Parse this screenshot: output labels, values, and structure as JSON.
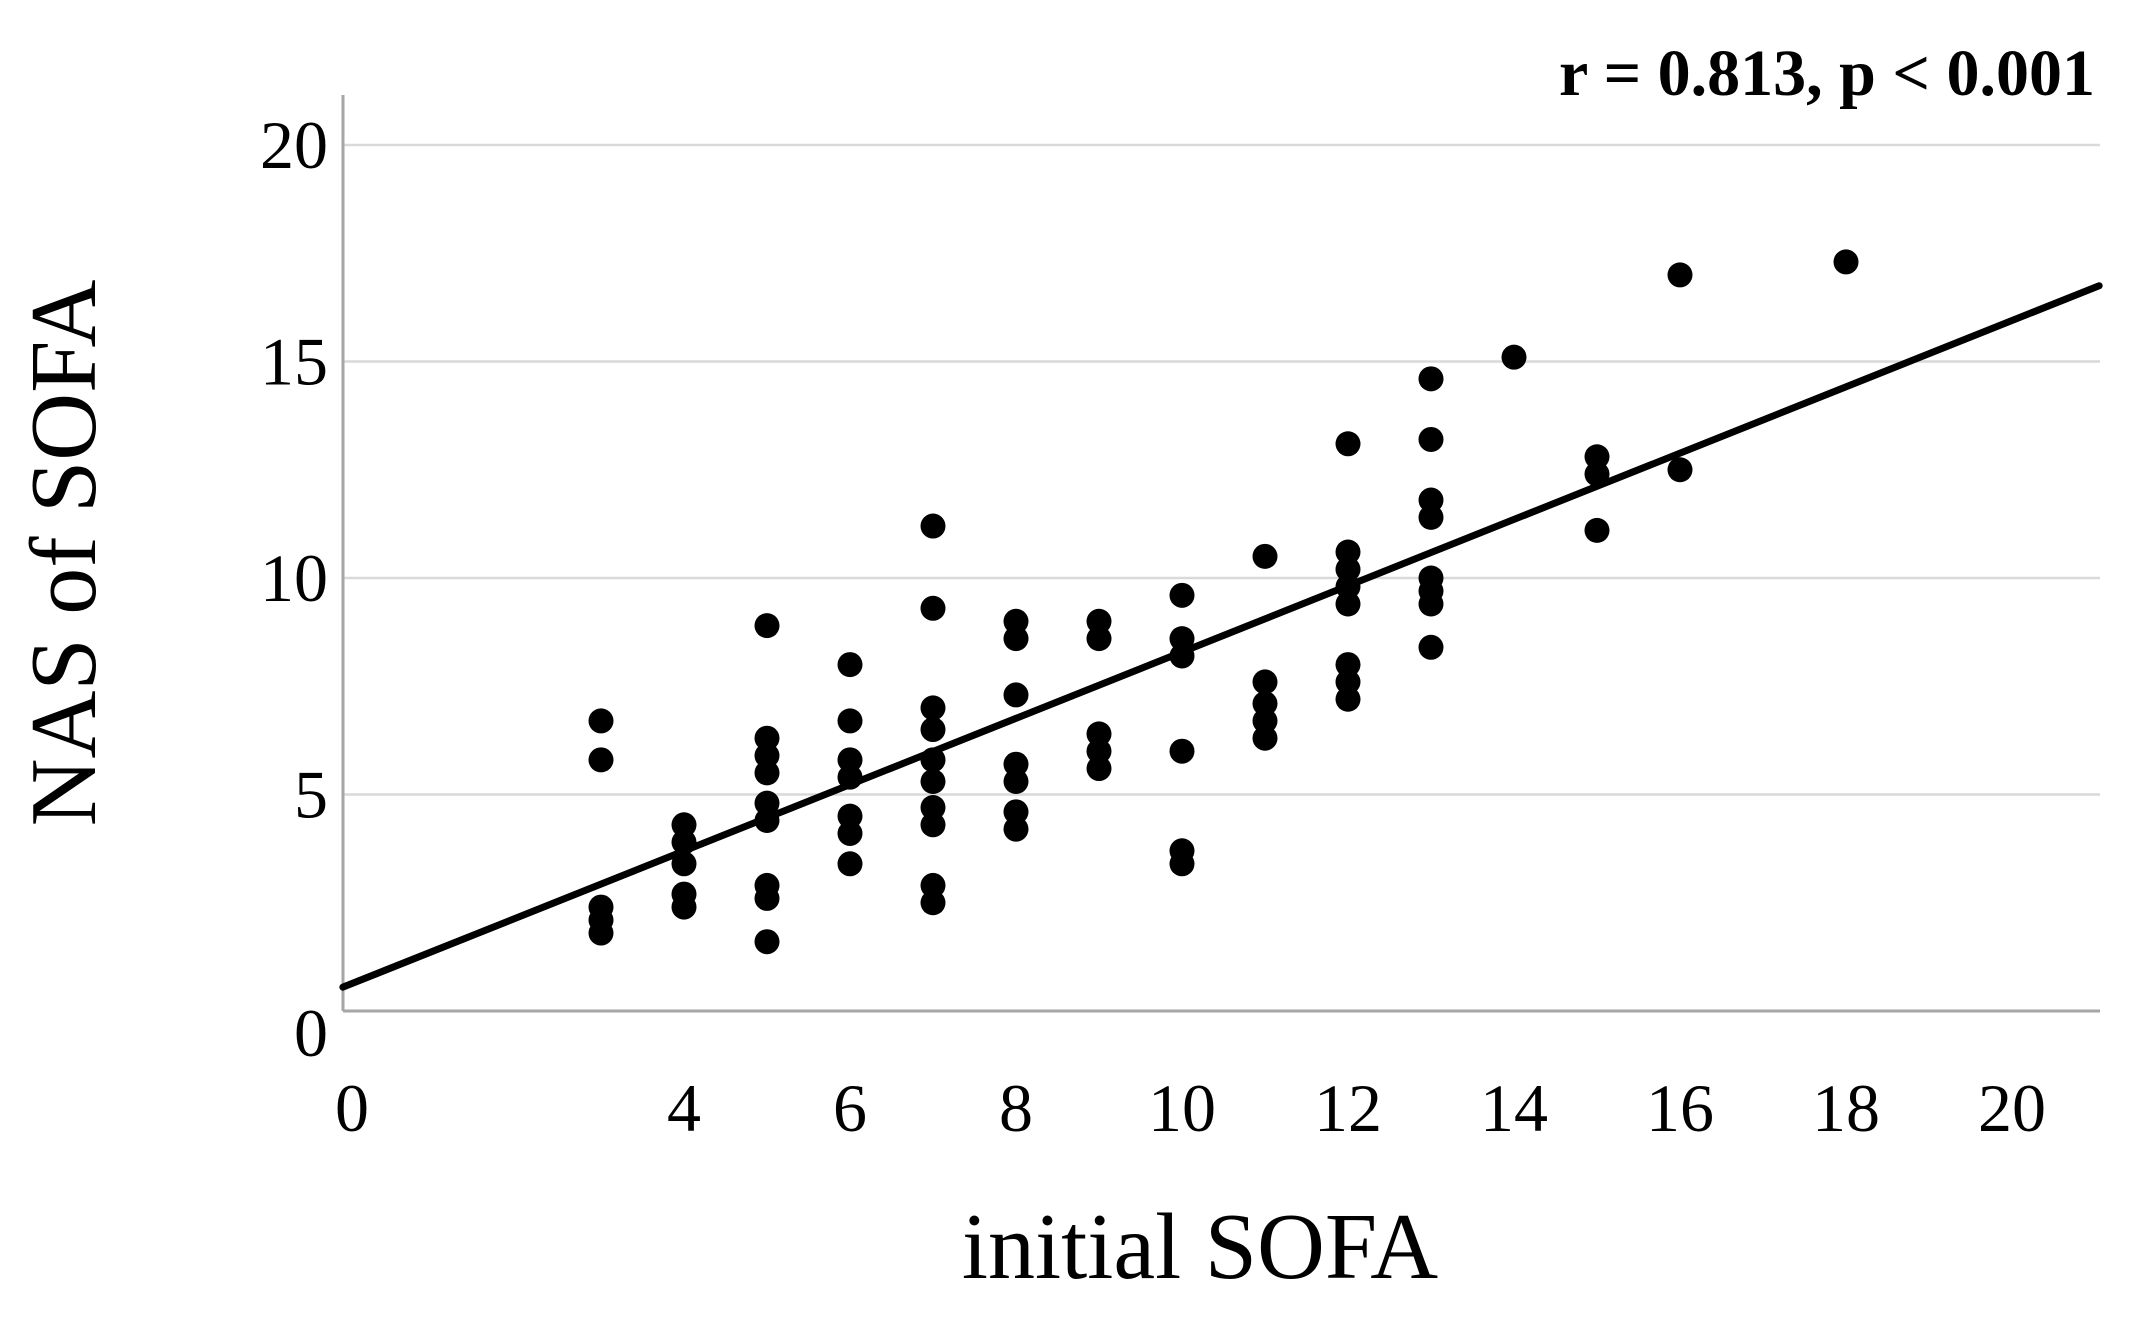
{
  "annotation": "r = 0.813, p < 0.001",
  "colors": {
    "dot": "#000000",
    "trend_line": "#000000",
    "gridline": "#d9d9d9",
    "axis_line": "#a6a6a6",
    "text": "#000000",
    "background": "#ffffff"
  },
  "chart_data": {
    "type": "scatter",
    "title": "",
    "xlabel": "initial SOFA",
    "ylabel": "NAS of SOFA",
    "annotation": "r = 0.813, p < 0.001",
    "xlim": [
      0,
      21
    ],
    "ylim": [
      0,
      21.2
    ],
    "grid": "horizontal-only",
    "legend": "none",
    "x_tick_values": [
      0,
      4,
      6,
      8,
      10,
      12,
      14,
      16,
      18,
      20
    ],
    "x_tick_labels": [
      "0",
      "4",
      "6",
      "8",
      "10",
      "12",
      "14",
      "16",
      "18",
      "20"
    ],
    "y_tick_values": [
      0,
      5,
      10,
      15,
      20
    ],
    "y_tick_labels": [
      "0",
      "5",
      "10",
      "15",
      "20"
    ],
    "points": [
      [
        3,
        6.7
      ],
      [
        3,
        5.8
      ],
      [
        3,
        2.4
      ],
      [
        3,
        2.1
      ],
      [
        3,
        1.8
      ],
      [
        4,
        4.3
      ],
      [
        4,
        3.9
      ],
      [
        4,
        3.4
      ],
      [
        4,
        2.7
      ],
      [
        4,
        2.4
      ],
      [
        5,
        8.9
      ],
      [
        5,
        6.3
      ],
      [
        5,
        5.9
      ],
      [
        5,
        5.5
      ],
      [
        5,
        4.8
      ],
      [
        5,
        4.4
      ],
      [
        5,
        2.9
      ],
      [
        5,
        2.6
      ],
      [
        5,
        1.6
      ],
      [
        6,
        8.0
      ],
      [
        6,
        6.7
      ],
      [
        6,
        5.8
      ],
      [
        6,
        5.4
      ],
      [
        6,
        4.5
      ],
      [
        6,
        4.1
      ],
      [
        6,
        3.4
      ],
      [
        7,
        11.2
      ],
      [
        7,
        9.3
      ],
      [
        7,
        7.0
      ],
      [
        7,
        6.5
      ],
      [
        7,
        5.8
      ],
      [
        7,
        5.3
      ],
      [
        7,
        4.7
      ],
      [
        7,
        4.3
      ],
      [
        7,
        2.9
      ],
      [
        7,
        2.5
      ],
      [
        8,
        9.0
      ],
      [
        8,
        8.6
      ],
      [
        8,
        7.3
      ],
      [
        8,
        5.7
      ],
      [
        8,
        5.3
      ],
      [
        8,
        4.6
      ],
      [
        8,
        4.2
      ],
      [
        9,
        9.0
      ],
      [
        9,
        8.6
      ],
      [
        9,
        6.4
      ],
      [
        9,
        6.0
      ],
      [
        9,
        5.6
      ],
      [
        10,
        9.6
      ],
      [
        10,
        8.6
      ],
      [
        10,
        8.2
      ],
      [
        10,
        6.0
      ],
      [
        10,
        3.7
      ],
      [
        10,
        3.4
      ],
      [
        11,
        10.5
      ],
      [
        11,
        7.6
      ],
      [
        11,
        7.1
      ],
      [
        11,
        6.7
      ],
      [
        11,
        6.3
      ],
      [
        12,
        13.1
      ],
      [
        12,
        10.6
      ],
      [
        12,
        10.2
      ],
      [
        12,
        9.8
      ],
      [
        12,
        9.4
      ],
      [
        12,
        8.0
      ],
      [
        12,
        7.6
      ],
      [
        12,
        7.2
      ],
      [
        13,
        14.6
      ],
      [
        13,
        13.2
      ],
      [
        13,
        11.8
      ],
      [
        13,
        11.4
      ],
      [
        13,
        10.0
      ],
      [
        13,
        9.7
      ],
      [
        13,
        9.4
      ],
      [
        13,
        8.4
      ],
      [
        14,
        15.1
      ],
      [
        15,
        12.8
      ],
      [
        15,
        12.4
      ],
      [
        15,
        11.1
      ],
      [
        16,
        17.0
      ],
      [
        16,
        12.5
      ],
      [
        18,
        17.3
      ]
    ],
    "trend_line": {
      "x1": -0.11,
      "y1": 0.55,
      "x2": 21.05,
      "y2": 16.75
    }
  }
}
